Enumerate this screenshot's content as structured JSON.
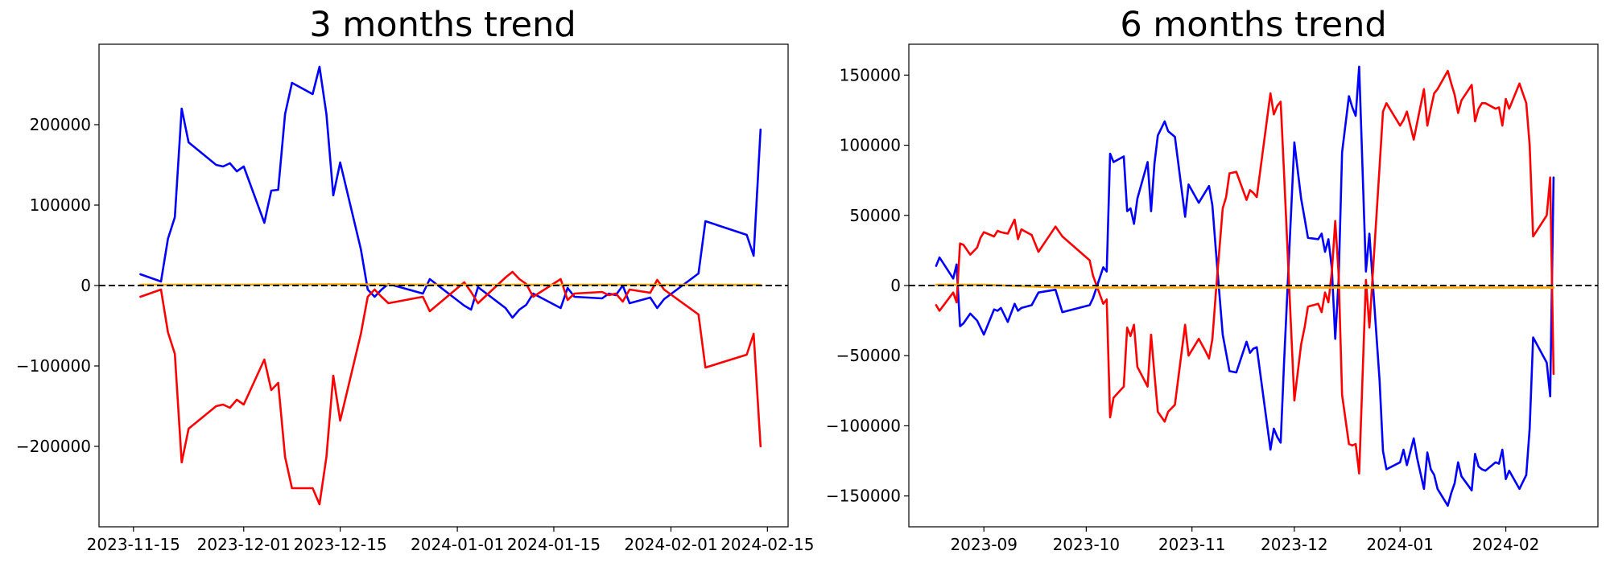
{
  "chart_data": [
    {
      "type": "line",
      "title": "3 months trend",
      "xlabel": "",
      "ylabel": "",
      "x_is_date": true,
      "xlim": [
        "2023-11-10",
        "2024-02-18"
      ],
      "ylim": [
        -300000,
        300000
      ],
      "xticks": [
        {
          "date": "2023-11-15",
          "label": "2023-11-15"
        },
        {
          "date": "2023-12-01",
          "label": "2023-12-01"
        },
        {
          "date": "2023-12-15",
          "label": "2023-12-15"
        },
        {
          "date": "2024-01-01",
          "label": "2024-01-01"
        },
        {
          "date": "2024-01-15",
          "label": "2024-01-15"
        },
        {
          "date": "2024-02-01",
          "label": "2024-02-01"
        },
        {
          "date": "2024-02-15",
          "label": "2024-02-15"
        }
      ],
      "yticks": [
        {
          "value": 200000,
          "label": "200000"
        },
        {
          "value": 100000,
          "label": "100000"
        },
        {
          "value": 0,
          "label": "0"
        },
        {
          "value": -100000,
          "label": "−100000"
        },
        {
          "value": -200000,
          "label": "−200000"
        }
      ],
      "reference_line": {
        "y": 0,
        "style": "dashed",
        "color": "#000000"
      },
      "series": [
        {
          "color": "#0000ff",
          "x": [
            "2023-11-16",
            "2023-11-19",
            "2023-11-20",
            "2023-11-21",
            "2023-11-22",
            "2023-11-23",
            "2023-11-27",
            "2023-11-28",
            "2023-11-29",
            "2023-11-30",
            "2023-12-01",
            "2023-12-04",
            "2023-12-05",
            "2023-12-06",
            "2023-12-07",
            "2023-12-08",
            "2023-12-11",
            "2023-12-12",
            "2023-12-13",
            "2023-12-14",
            "2023-12-15",
            "2023-12-18",
            "2023-12-19",
            "2023-12-20",
            "2023-12-21",
            "2023-12-22",
            "2023-12-27",
            "2023-12-28",
            "2024-01-02",
            "2024-01-03",
            "2024-01-04",
            "2024-01-08",
            "2024-01-09",
            "2024-01-10",
            "2024-01-11",
            "2024-01-12",
            "2024-01-16",
            "2024-01-17",
            "2024-01-18",
            "2024-01-22",
            "2024-01-23",
            "2024-01-24",
            "2024-01-25",
            "2024-01-26",
            "2024-01-29",
            "2024-01-30",
            "2024-01-31",
            "2024-02-05",
            "2024-02-06",
            "2024-02-12",
            "2024-02-13",
            "2024-02-14"
          ],
          "y": [
            14000,
            5000,
            58000,
            85000,
            220000,
            178000,
            150000,
            148000,
            152000,
            142000,
            148000,
            78000,
            118000,
            119000,
            213000,
            252000,
            238000,
            272000,
            213000,
            112000,
            153000,
            45000,
            -5000,
            -14000,
            -5000,
            2000,
            -10000,
            8000,
            -25000,
            -30000,
            -2000,
            -28000,
            -40000,
            -30000,
            -24000,
            -10000,
            -28000,
            -3000,
            -14000,
            -16000,
            -10000,
            -12000,
            0,
            -22000,
            -15000,
            -28000,
            -17000,
            15000,
            80000,
            63000,
            37000,
            194000
          ]
        },
        {
          "color": "#ff0000",
          "x": [
            "2023-11-16",
            "2023-11-19",
            "2023-11-20",
            "2023-11-21",
            "2023-11-22",
            "2023-11-23",
            "2023-11-27",
            "2023-11-28",
            "2023-11-29",
            "2023-11-30",
            "2023-12-01",
            "2023-12-04",
            "2023-12-05",
            "2023-12-06",
            "2023-12-07",
            "2023-12-08",
            "2023-12-11",
            "2023-12-12",
            "2023-12-13",
            "2023-12-14",
            "2023-12-15",
            "2023-12-18",
            "2023-12-19",
            "2023-12-20",
            "2023-12-21",
            "2023-12-22",
            "2023-12-27",
            "2023-12-28",
            "2024-01-02",
            "2024-01-03",
            "2024-01-04",
            "2024-01-08",
            "2024-01-09",
            "2024-01-10",
            "2024-01-11",
            "2024-01-12",
            "2024-01-16",
            "2024-01-17",
            "2024-01-18",
            "2024-01-22",
            "2024-01-23",
            "2024-01-24",
            "2024-01-25",
            "2024-01-26",
            "2024-01-29",
            "2024-01-30",
            "2024-01-31",
            "2024-02-05",
            "2024-02-06",
            "2024-02-12",
            "2024-02-13",
            "2024-02-14"
          ],
          "y": [
            -14000,
            -5000,
            -58000,
            -85000,
            -220000,
            -178000,
            -150000,
            -148000,
            -152000,
            -142000,
            -148000,
            -92000,
            -130000,
            -121000,
            -213000,
            -252000,
            -252000,
            -272000,
            -213000,
            -112000,
            -168000,
            -60000,
            -14000,
            -5000,
            -14000,
            -22000,
            -14000,
            -32000,
            4000,
            -8000,
            -22000,
            10000,
            17000,
            8000,
            2000,
            -14000,
            8000,
            -18000,
            -10000,
            -8000,
            -12000,
            -10000,
            -20000,
            -5000,
            -9000,
            7000,
            -5000,
            -36000,
            -102000,
            -86000,
            -60000,
            -200000
          ]
        },
        {
          "color": "#ffa500",
          "x": [
            "2023-11-16",
            "2023-12-01",
            "2023-12-15",
            "2024-01-01",
            "2024-01-15",
            "2024-02-01",
            "2024-02-14"
          ],
          "y": [
            1000,
            1000,
            1500,
            1000,
            800,
            1000,
            800
          ]
        }
      ]
    },
    {
      "type": "line",
      "title": "6 months trend",
      "xlabel": "",
      "ylabel": "",
      "x_is_date": true,
      "xlim": [
        "2023-08-10",
        "2024-02-28"
      ],
      "ylim": [
        -172000,
        172000
      ],
      "xticks": [
        {
          "date": "2023-09-01",
          "label": "2023-09"
        },
        {
          "date": "2023-10-01",
          "label": "2023-10"
        },
        {
          "date": "2023-11-01",
          "label": "2023-11"
        },
        {
          "date": "2023-12-01",
          "label": "2023-12"
        },
        {
          "date": "2024-01-01",
          "label": "2024-01"
        },
        {
          "date": "2024-02-01",
          "label": "2024-02"
        }
      ],
      "yticks": [
        {
          "value": 150000,
          "label": "150000"
        },
        {
          "value": 100000,
          "label": "100000"
        },
        {
          "value": 50000,
          "label": "50000"
        },
        {
          "value": 0,
          "label": "0"
        },
        {
          "value": -50000,
          "label": "−50000"
        },
        {
          "value": -100000,
          "label": "−100000"
        },
        {
          "value": -150000,
          "label": "−150000"
        }
      ],
      "reference_line": {
        "y": 0,
        "style": "dashed",
        "color": "#000000"
      },
      "series": [
        {
          "color": "#0000ff",
          "x": [
            "2023-08-18",
            "2023-08-19",
            "2023-08-23",
            "2023-08-24",
            "2023-08-25",
            "2023-08-26",
            "2023-08-28",
            "2023-08-30",
            "2023-08-31",
            "2023-09-01",
            "2023-09-04",
            "2023-09-05",
            "2023-09-06",
            "2023-09-08",
            "2023-09-10",
            "2023-09-11",
            "2023-09-12",
            "2023-09-15",
            "2023-09-17",
            "2023-09-22",
            "2023-09-24",
            "2023-10-02",
            "2023-10-03",
            "2023-10-06",
            "2023-10-07",
            "2023-10-08",
            "2023-10-09",
            "2023-10-12",
            "2023-10-13",
            "2023-10-14",
            "2023-10-15",
            "2023-10-16",
            "2023-10-19",
            "2023-10-20",
            "2023-10-21",
            "2023-10-22",
            "2023-10-24",
            "2023-10-25",
            "2023-10-27",
            "2023-10-30",
            "2023-10-31",
            "2023-11-03",
            "2023-11-05",
            "2023-11-06",
            "2023-11-07",
            "2023-11-08",
            "2023-11-10",
            "2023-11-11",
            "2023-11-12",
            "2023-11-14",
            "2023-11-17",
            "2023-11-18",
            "2023-11-19",
            "2023-11-20",
            "2023-11-24",
            "2023-11-25",
            "2023-11-26",
            "2023-11-27",
            "2023-11-28",
            "2023-12-01",
            "2023-12-03",
            "2023-12-04",
            "2023-12-05",
            "2023-12-08",
            "2023-12-09",
            "2023-12-10",
            "2023-12-11",
            "2023-12-12",
            "2023-12-13",
            "2023-12-14",
            "2023-12-15",
            "2023-12-17",
            "2023-12-18",
            "2023-12-19",
            "2023-12-20",
            "2023-12-22",
            "2023-12-23",
            "2023-12-26",
            "2023-12-27",
            "2023-12-28",
            "2024-01-01",
            "2024-01-02",
            "2024-01-03",
            "2024-01-05",
            "2024-01-06",
            "2024-01-08",
            "2024-01-09",
            "2024-01-10",
            "2024-01-11",
            "2024-01-12",
            "2024-01-15",
            "2024-01-16",
            "2024-01-17",
            "2024-01-18",
            "2024-01-19",
            "2024-01-22",
            "2024-01-23",
            "2024-01-24",
            "2024-01-25",
            "2024-01-26",
            "2024-01-29",
            "2024-01-30",
            "2024-01-31",
            "2024-02-01",
            "2024-02-02",
            "2024-02-05",
            "2024-02-07",
            "2024-02-08",
            "2024-02-09",
            "2024-02-13",
            "2024-02-14",
            "2024-02-15"
          ],
          "y": [
            14000,
            20000,
            5000,
            15000,
            -29000,
            -27000,
            -20000,
            -25000,
            -30000,
            -35000,
            -17000,
            -18000,
            -16000,
            -26000,
            -13000,
            -18000,
            -16000,
            -14000,
            -5000,
            -3000,
            -19000,
            -14000,
            -9000,
            13000,
            10000,
            94000,
            88000,
            92000,
            53000,
            55000,
            44000,
            62000,
            88000,
            53000,
            87000,
            107000,
            117000,
            110000,
            106000,
            49000,
            72000,
            59000,
            67000,
            71000,
            57000,
            25000,
            -35000,
            -48000,
            -61000,
            -62000,
            -40000,
            -48000,
            -45000,
            -44000,
            -117000,
            -102000,
            -108000,
            -112000,
            -55000,
            102000,
            62000,
            48000,
            34000,
            33000,
            37000,
            24000,
            33000,
            12000,
            -38000,
            4000,
            95000,
            135000,
            127000,
            121000,
            156000,
            10000,
            37000,
            -68000,
            -118000,
            -131000,
            -126000,
            -117000,
            -128000,
            -109000,
            -123000,
            -145000,
            -119000,
            -131000,
            -135000,
            -145000,
            -157000,
            -148000,
            -141000,
            -126000,
            -136000,
            -146000,
            -120000,
            -129000,
            -131000,
            -132000,
            -126000,
            -127000,
            -117000,
            -138000,
            -132000,
            -145000,
            -135000,
            -102000,
            -37000,
            -55000,
            -79000,
            77000
          ]
        },
        {
          "color": "#ff0000",
          "x": [
            "2023-08-18",
            "2023-08-19",
            "2023-08-23",
            "2023-08-24",
            "2023-08-25",
            "2023-08-26",
            "2023-08-28",
            "2023-08-30",
            "2023-08-31",
            "2023-09-01",
            "2023-09-04",
            "2023-09-05",
            "2023-09-06",
            "2023-09-08",
            "2023-09-10",
            "2023-09-11",
            "2023-09-12",
            "2023-09-15",
            "2023-09-17",
            "2023-09-22",
            "2023-09-24",
            "2023-10-02",
            "2023-10-03",
            "2023-10-06",
            "2023-10-07",
            "2023-10-08",
            "2023-10-09",
            "2023-10-12",
            "2023-10-13",
            "2023-10-14",
            "2023-10-15",
            "2023-10-16",
            "2023-10-19",
            "2023-10-20",
            "2023-10-21",
            "2023-10-22",
            "2023-10-24",
            "2023-10-25",
            "2023-10-27",
            "2023-10-30",
            "2023-10-31",
            "2023-11-03",
            "2023-11-05",
            "2023-11-06",
            "2023-11-07",
            "2023-11-08",
            "2023-11-10",
            "2023-11-11",
            "2023-11-12",
            "2023-11-14",
            "2023-11-17",
            "2023-11-18",
            "2023-11-19",
            "2023-11-20",
            "2023-11-24",
            "2023-11-25",
            "2023-11-26",
            "2023-11-27",
            "2023-11-28",
            "2023-12-01",
            "2023-12-03",
            "2023-12-04",
            "2023-12-05",
            "2023-12-08",
            "2023-12-09",
            "2023-12-10",
            "2023-12-11",
            "2023-12-12",
            "2023-12-13",
            "2023-12-14",
            "2023-12-15",
            "2023-12-17",
            "2023-12-18",
            "2023-12-19",
            "2023-12-20",
            "2023-12-22",
            "2023-12-23",
            "2023-12-26",
            "2023-12-27",
            "2023-12-28",
            "2024-01-01",
            "2024-01-02",
            "2024-01-03",
            "2024-01-05",
            "2024-01-06",
            "2024-01-08",
            "2024-01-09",
            "2024-01-10",
            "2024-01-11",
            "2024-01-12",
            "2024-01-15",
            "2024-01-16",
            "2024-01-17",
            "2024-01-18",
            "2024-01-19",
            "2024-01-22",
            "2024-01-23",
            "2024-01-24",
            "2024-01-25",
            "2024-01-26",
            "2024-01-29",
            "2024-01-30",
            "2024-01-31",
            "2024-02-01",
            "2024-02-02",
            "2024-02-05",
            "2024-02-07",
            "2024-02-08",
            "2024-02-09",
            "2024-02-13",
            "2024-02-14",
            "2024-02-15"
          ],
          "y": [
            -14000,
            -18000,
            -5000,
            -12000,
            30000,
            29000,
            22000,
            27000,
            34000,
            38000,
            35000,
            39000,
            38000,
            37000,
            47000,
            33000,
            40000,
            36000,
            24000,
            42000,
            35000,
            18000,
            7000,
            -13000,
            -10000,
            -94000,
            -80000,
            -72000,
            -30000,
            -36000,
            -28000,
            -58000,
            -72000,
            -35000,
            -63000,
            -90000,
            -97000,
            -90000,
            -85000,
            -28000,
            -50000,
            -38000,
            -47000,
            -52000,
            -38000,
            -5000,
            55000,
            63000,
            80000,
            81000,
            61000,
            68000,
            66000,
            63000,
            137000,
            122000,
            128000,
            131000,
            80000,
            -82000,
            -42000,
            -30000,
            -15000,
            -13000,
            -19000,
            -5000,
            -12000,
            10000,
            46000,
            8000,
            -78000,
            -113000,
            -114000,
            -113000,
            -134000,
            4000,
            -30000,
            85000,
            124000,
            130000,
            114000,
            118000,
            124000,
            104000,
            116000,
            140000,
            114000,
            126000,
            137000,
            140000,
            153000,
            144000,
            136000,
            123000,
            132000,
            143000,
            117000,
            126000,
            130000,
            130000,
            126000,
            127000,
            114000,
            133000,
            126000,
            144000,
            130000,
            100000,
            35000,
            50000,
            77000,
            -63000
          ]
        },
        {
          "color": "#ffa500",
          "x": [
            "2023-08-18",
            "2023-09-01",
            "2023-09-24",
            "2023-10-15",
            "2023-11-05",
            "2023-11-28",
            "2023-12-20",
            "2024-01-10",
            "2024-02-01",
            "2024-02-15"
          ],
          "y": [
            500,
            500,
            -1500,
            -1500,
            -1500,
            -1500,
            -1500,
            -1500,
            -1500,
            -1500
          ]
        }
      ]
    }
  ]
}
